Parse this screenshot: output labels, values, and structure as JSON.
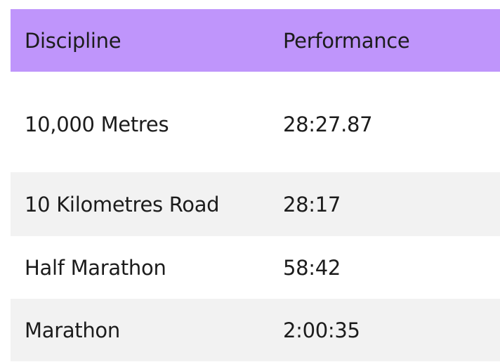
{
  "table": {
    "header": {
      "discipline": "Discipline",
      "performance": "Performance"
    },
    "rows": [
      {
        "discipline": "10,000 Metres",
        "performance": "28:27.87"
      },
      {
        "discipline": "10 Kilometres Road",
        "performance": "28:17"
      },
      {
        "discipline": "Half Marathon",
        "performance": "58:42"
      },
      {
        "discipline": "Marathon",
        "performance": "2:00:35"
      }
    ]
  },
  "colors": {
    "header_background": "#bf95fb",
    "stripe_background": "#f2f2f2",
    "text": "#1c1c1c"
  }
}
